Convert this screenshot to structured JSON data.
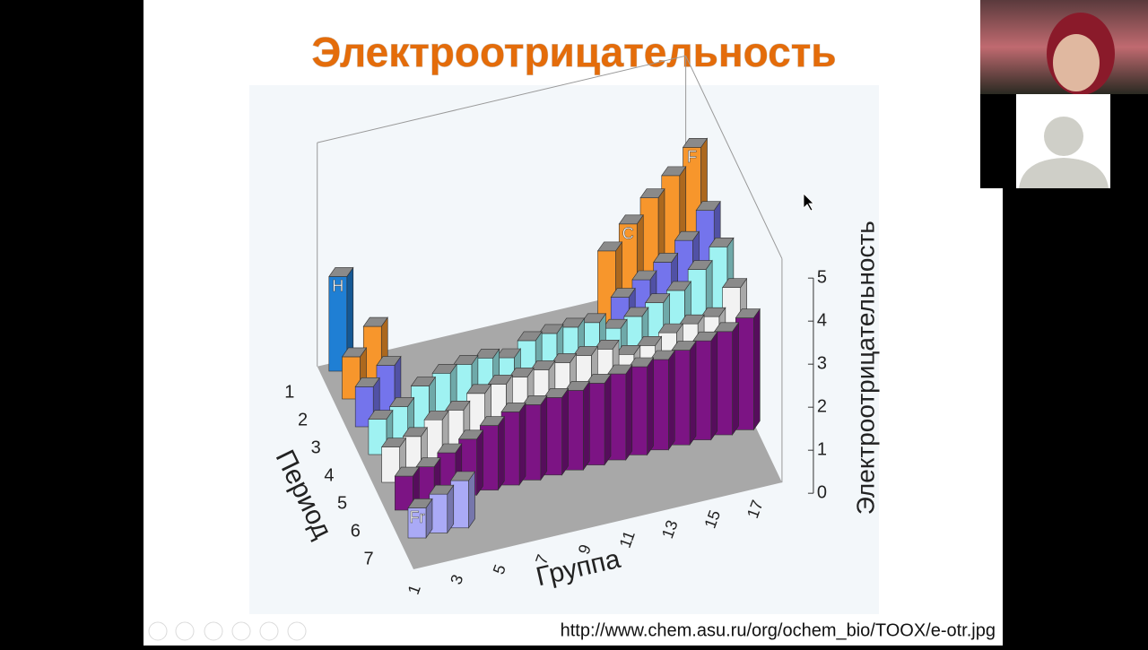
{
  "slide": {
    "title": "Электроотрицательность",
    "url": "http://www.chem.asu.ru/org/ochem_bio/TOOX/e-otr.jpg"
  },
  "chart_data": {
    "type": "bar3d",
    "x_label": "Группа",
    "period_label": "Период",
    "z_label": "Электроотрицательность",
    "categories": [
      1,
      null,
      3,
      null,
      5,
      null,
      7,
      null,
      9,
      null,
      11,
      null,
      13,
      null,
      15,
      null,
      17
    ],
    "periods": [
      1,
      2,
      3,
      4,
      5,
      6,
      7
    ],
    "zlim": [
      0,
      5
    ],
    "zticks": [
      0,
      1,
      2,
      3,
      4,
      5
    ],
    "series": [
      {
        "color": "#1f7fd4",
        "values": [
          2.2,
          null,
          null,
          null,
          null,
          null,
          null,
          null,
          null,
          null,
          null,
          null,
          null,
          null,
          null,
          null,
          null
        ]
      },
      {
        "color": "#f7962c",
        "values": [
          0.98,
          1.57,
          null,
          null,
          null,
          null,
          null,
          null,
          null,
          null,
          null,
          null,
          2.04,
          2.55,
          3.04,
          3.44,
          3.98
        ]
      },
      {
        "color": "#7474ec",
        "values": [
          0.93,
          1.31,
          null,
          null,
          null,
          null,
          null,
          null,
          null,
          null,
          null,
          null,
          1.61,
          1.9,
          2.19,
          2.58,
          3.16
        ]
      },
      {
        "color": "#9ff2f2",
        "values": [
          0.82,
          1.0,
          1.36,
          1.54,
          1.63,
          1.66,
          1.55,
          1.83,
          1.88,
          1.91,
          1.9,
          1.65,
          1.81,
          2.01,
          2.18,
          2.55,
          2.96
        ]
      },
      {
        "color": "#f2f2f2",
        "values": [
          0.82,
          0.95,
          1.22,
          1.33,
          1.6,
          1.7,
          1.75,
          1.8,
          1.85,
          1.9,
          1.93,
          1.69,
          1.78,
          1.96,
          2.05,
          2.1,
          2.66
        ]
      },
      {
        "color": "#7c1484",
        "values": [
          0.79,
          0.89,
          1.1,
          1.3,
          1.5,
          1.7,
          1.75,
          1.8,
          1.85,
          1.9,
          2.0,
          2.05,
          2.1,
          2.2,
          2.3,
          2.4,
          2.6
        ]
      },
      {
        "color": "#aaaaf6",
        "values": [
          0.7,
          0.9,
          1.1,
          null,
          null,
          null,
          null,
          null,
          null,
          null,
          null,
          null,
          null,
          null,
          null,
          null,
          null
        ]
      }
    ],
    "annotations": [
      {
        "text": "H",
        "series": 0,
        "index": 0
      },
      {
        "text": "C",
        "series": 1,
        "index": 13
      },
      {
        "text": "F",
        "series": 1,
        "index": 16
      },
      {
        "text": "Fr",
        "series": 6,
        "index": 0
      }
    ]
  }
}
